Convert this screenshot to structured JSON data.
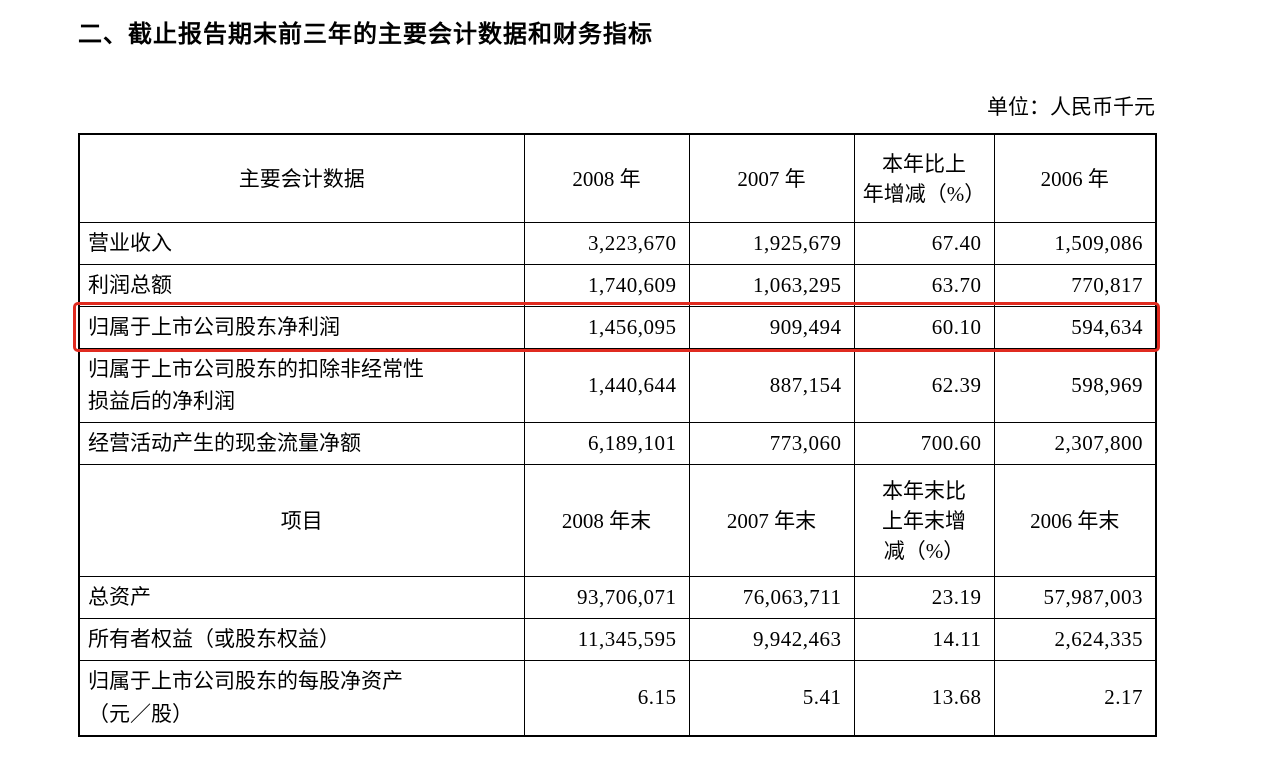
{
  "page": {
    "title": "二、截止报告期末前三年的主要会计数据和财务指标",
    "unit_label": "单位：人民币千元"
  },
  "colors": {
    "highlight": "#e02b20"
  },
  "table": {
    "section1": {
      "headers": [
        "主要会计数据",
        "2008 年",
        "2007 年",
        "本年比上\n年增减（%）",
        "2006 年"
      ],
      "rows": [
        {
          "label": "营业收入",
          "values": [
            "3,223,670",
            "1,925,679",
            "67.40",
            "1,509,086"
          ]
        },
        {
          "label": "利润总额",
          "values": [
            "1,740,609",
            "1,063,295",
            "63.70",
            "770,817"
          ]
        },
        {
          "label": "归属于上市公司股东净利润",
          "values": [
            "1,456,095",
            "909,494",
            "60.10",
            "594,634"
          ],
          "highlighted": true
        },
        {
          "label": "归属于上市公司股东的扣除非经常性\n损益后的净利润",
          "values": [
            "1,440,644",
            "887,154",
            "62.39",
            "598,969"
          ]
        },
        {
          "label": "经营活动产生的现金流量净额",
          "values": [
            "6,189,101",
            "773,060",
            "700.60",
            "2,307,800"
          ]
        }
      ]
    },
    "section2": {
      "headers": [
        "项目",
        "2008 年末",
        "2007 年末",
        "本年末比\n上年末增\n减（%）",
        "2006 年末"
      ],
      "rows": [
        {
          "label": "总资产",
          "values": [
            "93,706,071",
            "76,063,711",
            "23.19",
            "57,987,003"
          ]
        },
        {
          "label": "所有者权益（或股东权益）",
          "values": [
            "11,345,595",
            "9,942,463",
            "14.11",
            "2,624,335"
          ]
        },
        {
          "label": "归属于上市公司股东的每股净资产\n（元／股）",
          "values": [
            "6.15",
            "5.41",
            "13.68",
            "2.17"
          ]
        }
      ]
    }
  }
}
